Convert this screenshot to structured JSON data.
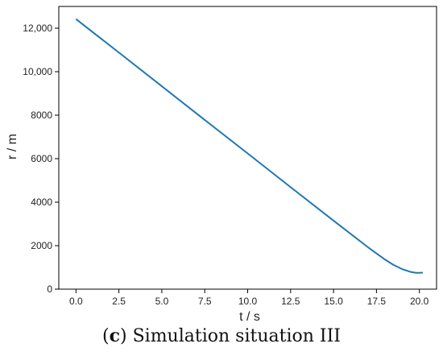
{
  "figure": {
    "caption_open": "(",
    "caption_label": "c",
    "caption_rest": ") Simulation situation III"
  },
  "chart_data": {
    "type": "line",
    "title": "",
    "xlabel": "t / s",
    "ylabel": "r / m",
    "xlim": [
      -1.0,
      21.0
    ],
    "ylim": [
      0,
      13000
    ],
    "xticks": [
      0.0,
      2.5,
      5.0,
      7.5,
      10.0,
      12.5,
      15.0,
      17.5,
      20.0
    ],
    "xtick_labels": [
      "0.0",
      "2.5",
      "5.0",
      "7.5",
      "10.0",
      "12.5",
      "15.0",
      "17.5",
      "20.0"
    ],
    "yticks": [
      0,
      2000,
      4000,
      6000,
      8000,
      10000,
      12000
    ],
    "ytick_labels": [
      "0",
      "2000",
      "4000",
      "6000",
      "8000",
      "10,000",
      "12,000"
    ],
    "grid": false,
    "series": [
      {
        "color": "#1f77b4",
        "x": [
          0.0,
          2.5,
          5.0,
          7.5,
          10.0,
          12.5,
          15.0,
          17.0,
          18.0,
          18.5,
          19.0,
          19.5,
          19.8,
          20.0,
          20.2
        ],
        "y": [
          12420,
          10880,
          9330,
          7780,
          6240,
          4690,
          3150,
          1930,
          1360,
          1110,
          920,
          790,
          750,
          750,
          760
        ]
      }
    ]
  }
}
